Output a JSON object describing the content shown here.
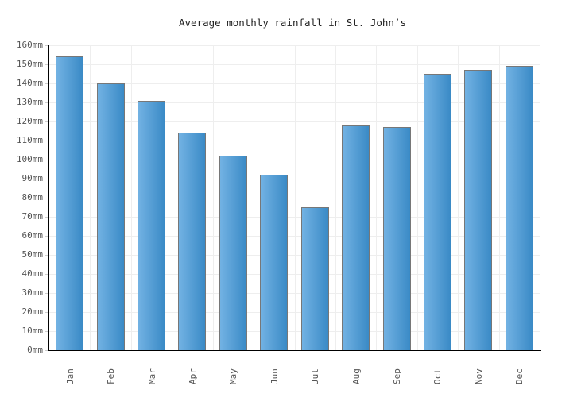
{
  "chart_data": {
    "type": "bar",
    "title": "Average monthly rainfall in St. John’s",
    "categories": [
      "Jan",
      "Feb",
      "Mar",
      "Apr",
      "May",
      "Jun",
      "Jul",
      "Aug",
      "Sep",
      "Oct",
      "Nov",
      "Dec"
    ],
    "values": [
      154,
      140,
      131,
      114,
      102,
      92,
      75,
      118,
      117,
      145,
      147,
      149
    ],
    "unit": "mm",
    "xlabel": "",
    "ylabel": "",
    "ylim": [
      0,
      160
    ],
    "ytick_step": 10,
    "ytick_labels": [
      "0mm",
      "10mm",
      "20mm",
      "30mm",
      "40mm",
      "50mm",
      "60mm",
      "70mm",
      "80mm",
      "90mm",
      "100mm",
      "110mm",
      "120mm",
      "130mm",
      "140mm",
      "150mm",
      "160mm"
    ],
    "grid": true,
    "legend": "none",
    "colors": {
      "bar_gradient_left": "#72b2e3",
      "bar_gradient_right": "#3a8ac6",
      "bar_border": "#777777",
      "gridline": "#eeeeee",
      "axis": "#000000",
      "tick": "#cccccc",
      "label_text": "#555555",
      "title_text": "#222222",
      "background": "#ffffff"
    }
  }
}
